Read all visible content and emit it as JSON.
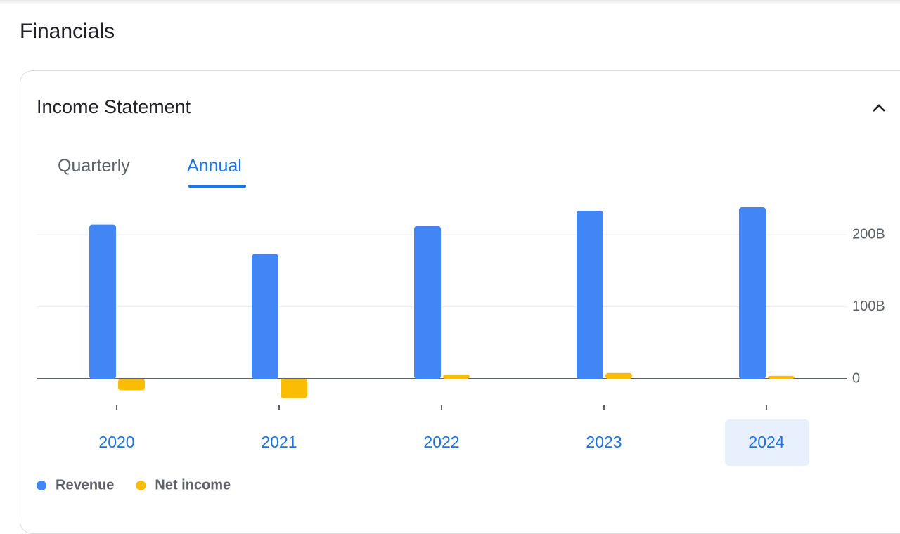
{
  "page": {
    "title": "Financials",
    "section": "Income Statement",
    "tabs": [
      "Quarterly",
      "Annual"
    ],
    "active_tab": 1
  },
  "chart_data": {
    "type": "bar",
    "categories": [
      "2020",
      "2021",
      "2022",
      "2023",
      "2024"
    ],
    "selected_category": 4,
    "series": [
      {
        "name": "Revenue",
        "color": "#4285f4",
        "values": [
          214,
          173,
          212,
          233,
          238
        ]
      },
      {
        "name": "Net income",
        "color": "#fbbc04",
        "values": [
          -16,
          -27,
          6,
          8,
          4
        ]
      }
    ],
    "ylim": [
      -30,
      250
    ],
    "yticks": [
      {
        "value": 0,
        "label": "0"
      },
      {
        "value": 100,
        "label": "100B"
      },
      {
        "value": 200,
        "label": "200B"
      }
    ],
    "grid": true
  }
}
